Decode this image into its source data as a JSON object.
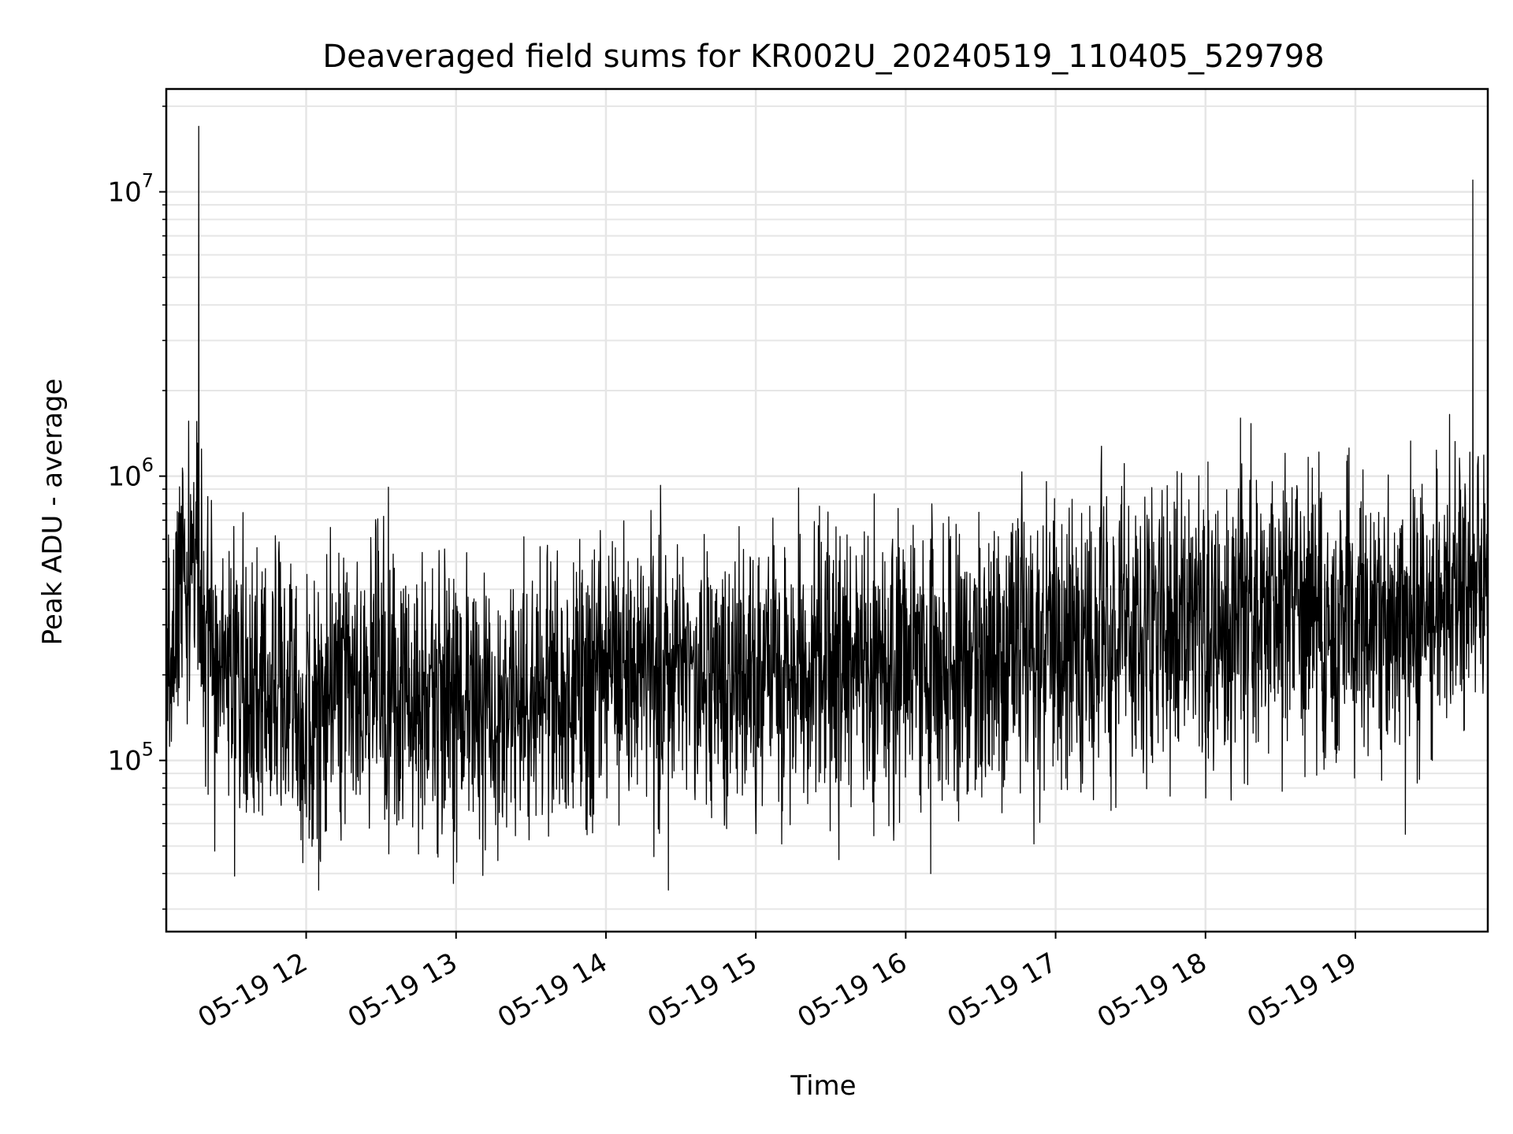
{
  "chart_data": {
    "type": "line",
    "title": "Deaveraged field sums for KR002U_20240519_110405_529798",
    "xlabel": "Time",
    "ylabel": "Peak ADU - average",
    "x_ticks": [
      "05-19 12",
      "05-19 13",
      "05-19 14",
      "05-19 15",
      "05-19 16",
      "05-19 17",
      "05-19 18",
      "05-19 19"
    ],
    "y_ticks": [
      {
        "base": "10",
        "exp": "5",
        "value": 100000
      },
      {
        "base": "10",
        "exp": "6",
        "value": 1000000
      },
      {
        "base": "10",
        "exp": "7",
        "value": 10000000
      }
    ],
    "xlim": [
      "2024-05-19 11:04",
      "2024-05-19 19:53"
    ],
    "ylim": [
      25000,
      23000000
    ],
    "y_scale": "log",
    "grid": true,
    "line_color": "#000000",
    "grid_color": "#e6e6e6",
    "series": [
      {
        "x": [
          "2024-05-19 11:04",
          "2024-05-19 11:10",
          "2024-05-19 11:12",
          "2024-05-19 11:15",
          "2024-05-19 11:17",
          "2024-05-19 11:19",
          "2024-05-19 11:30",
          "2024-05-19 11:45",
          "2024-05-19 12:00",
          "2024-05-19 12:05",
          "2024-05-19 12:15",
          "2024-05-19 12:22",
          "2024-05-19 12:30",
          "2024-05-19 12:38",
          "2024-05-19 12:45",
          "2024-05-19 13:00",
          "2024-05-19 13:15",
          "2024-05-19 13:30",
          "2024-05-19 13:35",
          "2024-05-19 13:45",
          "2024-05-19 14:00",
          "2024-05-19 14:15",
          "2024-05-19 14:25",
          "2024-05-19 14:30",
          "2024-05-19 14:45",
          "2024-05-19 15:00",
          "2024-05-19 15:15",
          "2024-05-19 15:30",
          "2024-05-19 15:45",
          "2024-05-19 16:00",
          "2024-05-19 16:10",
          "2024-05-19 16:15",
          "2024-05-19 16:30",
          "2024-05-19 16:45",
          "2024-05-19 17:00",
          "2024-05-19 17:15",
          "2024-05-19 17:30",
          "2024-05-19 17:45",
          "2024-05-19 18:00",
          "2024-05-19 18:14",
          "2024-05-19 18:30",
          "2024-05-19 18:45",
          "2024-05-19 19:00",
          "2024-05-19 19:15",
          "2024-05-19 19:20",
          "2024-05-19 19:30",
          "2024-05-19 19:40",
          "2024-05-19 19:45",
          "2024-05-19 19:47",
          "2024-05-19 19:50",
          "2024-05-19 19:53"
        ],
        "y": [
          200000,
          400000,
          350000,
          550000,
          17000000,
          250000,
          200000,
          170000,
          160000,
          35000,
          180000,
          170000,
          200000,
          180000,
          160000,
          170000,
          150000,
          160000,
          170000,
          180000,
          190000,
          200000,
          35000,
          210000,
          200000,
          190000,
          220000,
          210000,
          230000,
          200000,
          40000,
          220000,
          230000,
          240000,
          260000,
          280000,
          290000,
          320000,
          310000,
          1600000,
          320000,
          330000,
          330000,
          300000,
          55000,
          320000,
          420000,
          480000,
          11000000,
          520000,
          450000
        ]
      }
    ]
  }
}
